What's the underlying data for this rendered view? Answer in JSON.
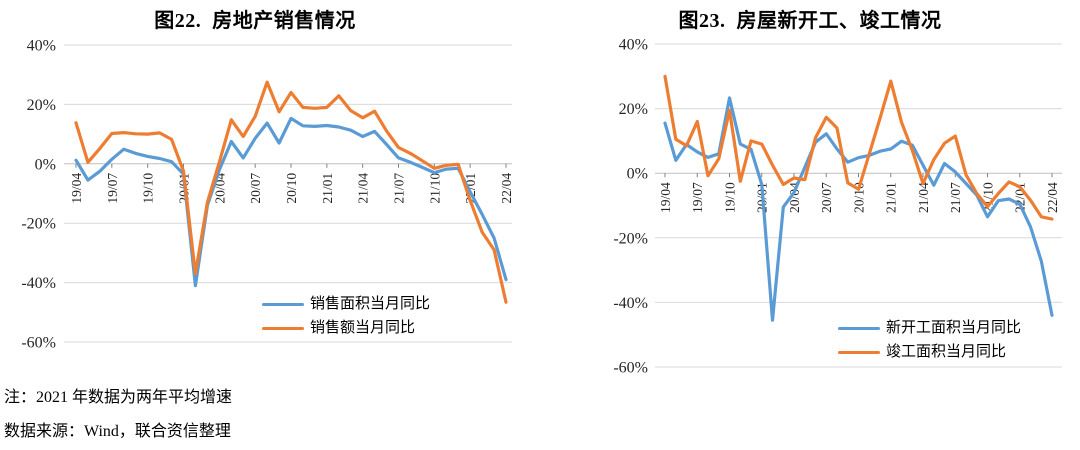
{
  "page": {
    "background": "#ffffff"
  },
  "colors": {
    "series_blue": "#5B9BD5",
    "series_orange": "#ED7D31",
    "gridline": "#D9D9D9",
    "axis_line": "#BFBFBF",
    "tick_mark": "#808080",
    "label_text": "#262626"
  },
  "notes": [
    "注：2021 年数据为两年平均增速",
    "数据来源：Wind，联合资信整理"
  ],
  "chart_data": [
    {
      "type": "line",
      "title": "图22.  房地产销售情况",
      "grid": true,
      "legend_position": "inside-bottom-right",
      "ylim": [
        -60,
        40
      ],
      "yticks": [
        40,
        20,
        0,
        -20,
        -40,
        -60
      ],
      "ytick_labels": [
        "40%",
        "20%",
        "0%",
        "-20%",
        "-40%",
        "-60%"
      ],
      "x_tick_every": 3,
      "categories": [
        "19/04",
        "19/05",
        "19/06",
        "19/07",
        "19/08",
        "19/09",
        "19/10",
        "19/11",
        "19/12",
        "20/01",
        "20/02",
        "20/03",
        "20/04",
        "20/05",
        "20/06",
        "20/07",
        "20/08",
        "20/09",
        "20/10",
        "20/11",
        "20/12",
        "21/01",
        "21/02",
        "21/03",
        "21/04",
        "21/05",
        "21/06",
        "21/07",
        "21/08",
        "21/09",
        "21/10",
        "21/11",
        "21/12",
        "22/01",
        "22/02",
        "22/03",
        "22/04"
      ],
      "series": [
        {
          "name": "销售面积当月同比",
          "color": "#5B9BD5",
          "values": [
            1.2,
            -5.5,
            -2.5,
            1.5,
            4.9,
            3.5,
            2.5,
            1.8,
            0.7,
            -3.5,
            -41.0,
            -14.0,
            -2.1,
            7.5,
            2.0,
            8.6,
            13.7,
            7.0,
            15.3,
            12.8,
            12.6,
            12.9,
            12.4,
            11.3,
            9.2,
            10.9,
            6.5,
            2.0,
            0.5,
            -1.2,
            -3.0,
            -1.8,
            -1.5,
            -9.5,
            -17.0,
            -25.0,
            -39.0
          ]
        },
        {
          "name": "销售额当月同比",
          "color": "#ED7D31",
          "values": [
            13.8,
            0.5,
            5.2,
            10.2,
            10.5,
            10.1,
            10.0,
            10.4,
            8.2,
            -2.5,
            -37.0,
            -13.0,
            0.5,
            14.8,
            9.2,
            16.0,
            27.5,
            17.5,
            24.0,
            19.0,
            18.7,
            19.0,
            22.9,
            17.9,
            15.5,
            17.7,
            11.0,
            5.5,
            3.5,
            1.0,
            -1.5,
            -0.5,
            -0.2,
            -12.4,
            -23.0,
            -29.0,
            -46.6
          ]
        }
      ]
    },
    {
      "type": "line",
      "title": "图23.  房屋新开工、竣工情况",
      "grid": true,
      "legend_position": "inside-bottom-right",
      "ylim": [
        -60,
        40
      ],
      "yticks": [
        40,
        20,
        0,
        -20,
        -40,
        -60
      ],
      "ytick_labels": [
        "40%",
        "20%",
        "0%",
        "-20%",
        "-40%",
        "-60%"
      ],
      "x_tick_every": 3,
      "categories": [
        "19/04",
        "19/05",
        "19/06",
        "19/07",
        "19/08",
        "19/09",
        "19/10",
        "19/11",
        "19/12",
        "20/01",
        "20/02",
        "20/03",
        "20/04",
        "20/05",
        "20/06",
        "20/07",
        "20/08",
        "20/09",
        "20/10",
        "20/11",
        "20/12",
        "21/01",
        "21/02",
        "21/03",
        "21/04",
        "21/05",
        "21/06",
        "21/07",
        "21/08",
        "21/09",
        "21/10",
        "21/11",
        "21/12",
        "22/01",
        "22/02",
        "22/03",
        "22/04"
      ],
      "series": [
        {
          "name": "新开工面积当月同比",
          "color": "#5B9BD5",
          "values": [
            15.5,
            4.0,
            8.9,
            6.6,
            4.9,
            6.0,
            23.3,
            9.0,
            7.4,
            -3.5,
            -45.5,
            -10.5,
            -6.0,
            1.8,
            9.6,
            12.2,
            7.5,
            3.4,
            4.8,
            5.5,
            6.8,
            7.5,
            9.9,
            8.7,
            2.5,
            -3.7,
            3.0,
            0.4,
            -3.2,
            -6.8,
            -13.5,
            -8.5,
            -8.0,
            -9.6,
            -16.6,
            -27.2,
            -44.0
          ]
        },
        {
          "name": "竣工面积当月同比",
          "color": "#ED7D31",
          "values": [
            30.0,
            10.5,
            8.5,
            16.0,
            -0.8,
            4.5,
            19.5,
            -2.5,
            10.0,
            9.0,
            2.5,
            -3.5,
            -1.5,
            -2.0,
            11.0,
            17.3,
            14.0,
            -3.0,
            -5.0,
            6.0,
            17.0,
            28.5,
            15.8,
            7.1,
            -3.2,
            4.2,
            9.3,
            11.5,
            -0.5,
            -6.3,
            -10.4,
            -6.3,
            -2.7,
            -4.2,
            -8.4,
            -13.5,
            -14.2
          ]
        }
      ]
    }
  ]
}
